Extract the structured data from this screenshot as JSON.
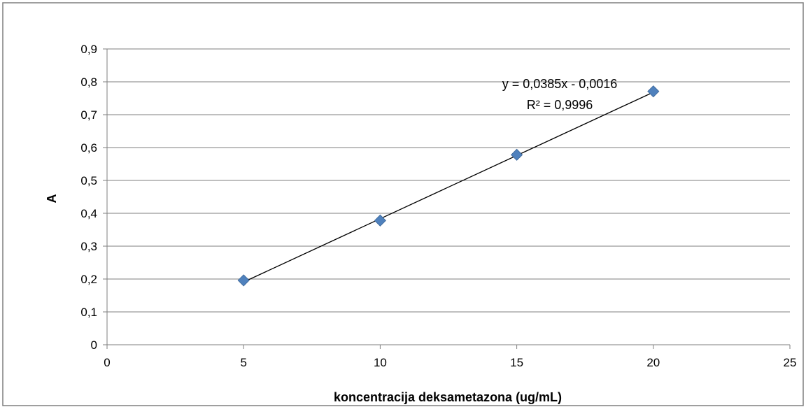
{
  "chart_data": {
    "type": "scatter",
    "title": "",
    "xlabel": "koncentracija deksametazona (ug/mL)",
    "ylabel": "A",
    "xlim": [
      0,
      25
    ],
    "ylim": [
      0,
      0.9
    ],
    "x_ticks": [
      "0",
      "5",
      "10",
      "15",
      "20",
      "25"
    ],
    "y_ticks": [
      "0",
      "0,1",
      "0,2",
      "0,3",
      "0,4",
      "0,5",
      "0,6",
      "0,7",
      "0,8",
      "0,9"
    ],
    "grid": "horizontal",
    "legend": "none",
    "series": [
      {
        "x": [
          5,
          10,
          15,
          20
        ],
        "y": [
          0.196,
          0.378,
          0.578,
          0.771
        ],
        "marker": "diamond",
        "color": "#4F81BD"
      }
    ],
    "trendline": {
      "type": "linear",
      "slope": 0.0385,
      "intercept": -0.0016,
      "x_range": [
        5,
        20
      ],
      "color": "#000000",
      "equation_label": "y = 0,0385x - 0,0016",
      "r2_label": "R² = 0,9996"
    },
    "border_color": "#7F7F7F",
    "grid_color": "#7F7F7F"
  }
}
